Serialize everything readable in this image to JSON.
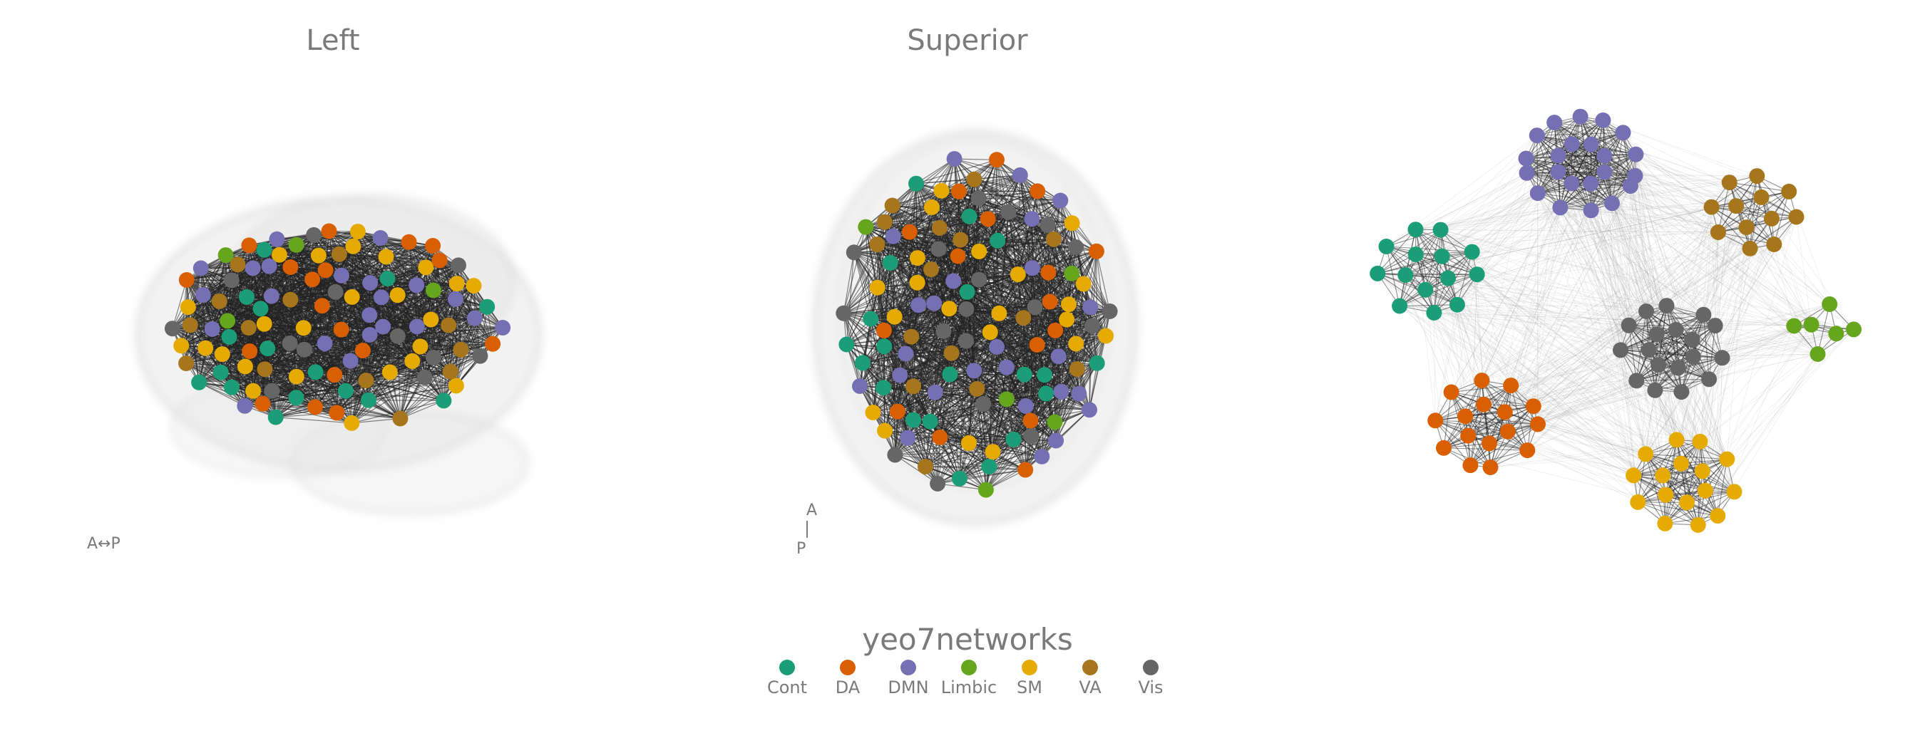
{
  "panels": {
    "left": {
      "title": "Left",
      "orientation": "A↔P"
    },
    "superior": {
      "title": "Superior",
      "orient_top": "A",
      "orient_bottom": "P"
    },
    "network": {
      "title": ""
    }
  },
  "legend": {
    "title": "yeo7networks",
    "items": [
      {
        "label": "Cont",
        "color": "#1b9e77"
      },
      {
        "label": "DA",
        "color": "#d95f02"
      },
      {
        "label": "DMN",
        "color": "#7570b3"
      },
      {
        "label": "Limbic",
        "color": "#66a61e"
      },
      {
        "label": "SM",
        "color": "#e6ab02"
      },
      {
        "label": "VA",
        "color": "#a6761d"
      },
      {
        "label": "Vis",
        "color": "#666666"
      }
    ]
  },
  "colors": {
    "text": "#7a7a7a",
    "brain_fill": "#d9d9d9",
    "edge": "#222222",
    "background": "#ffffff"
  }
}
